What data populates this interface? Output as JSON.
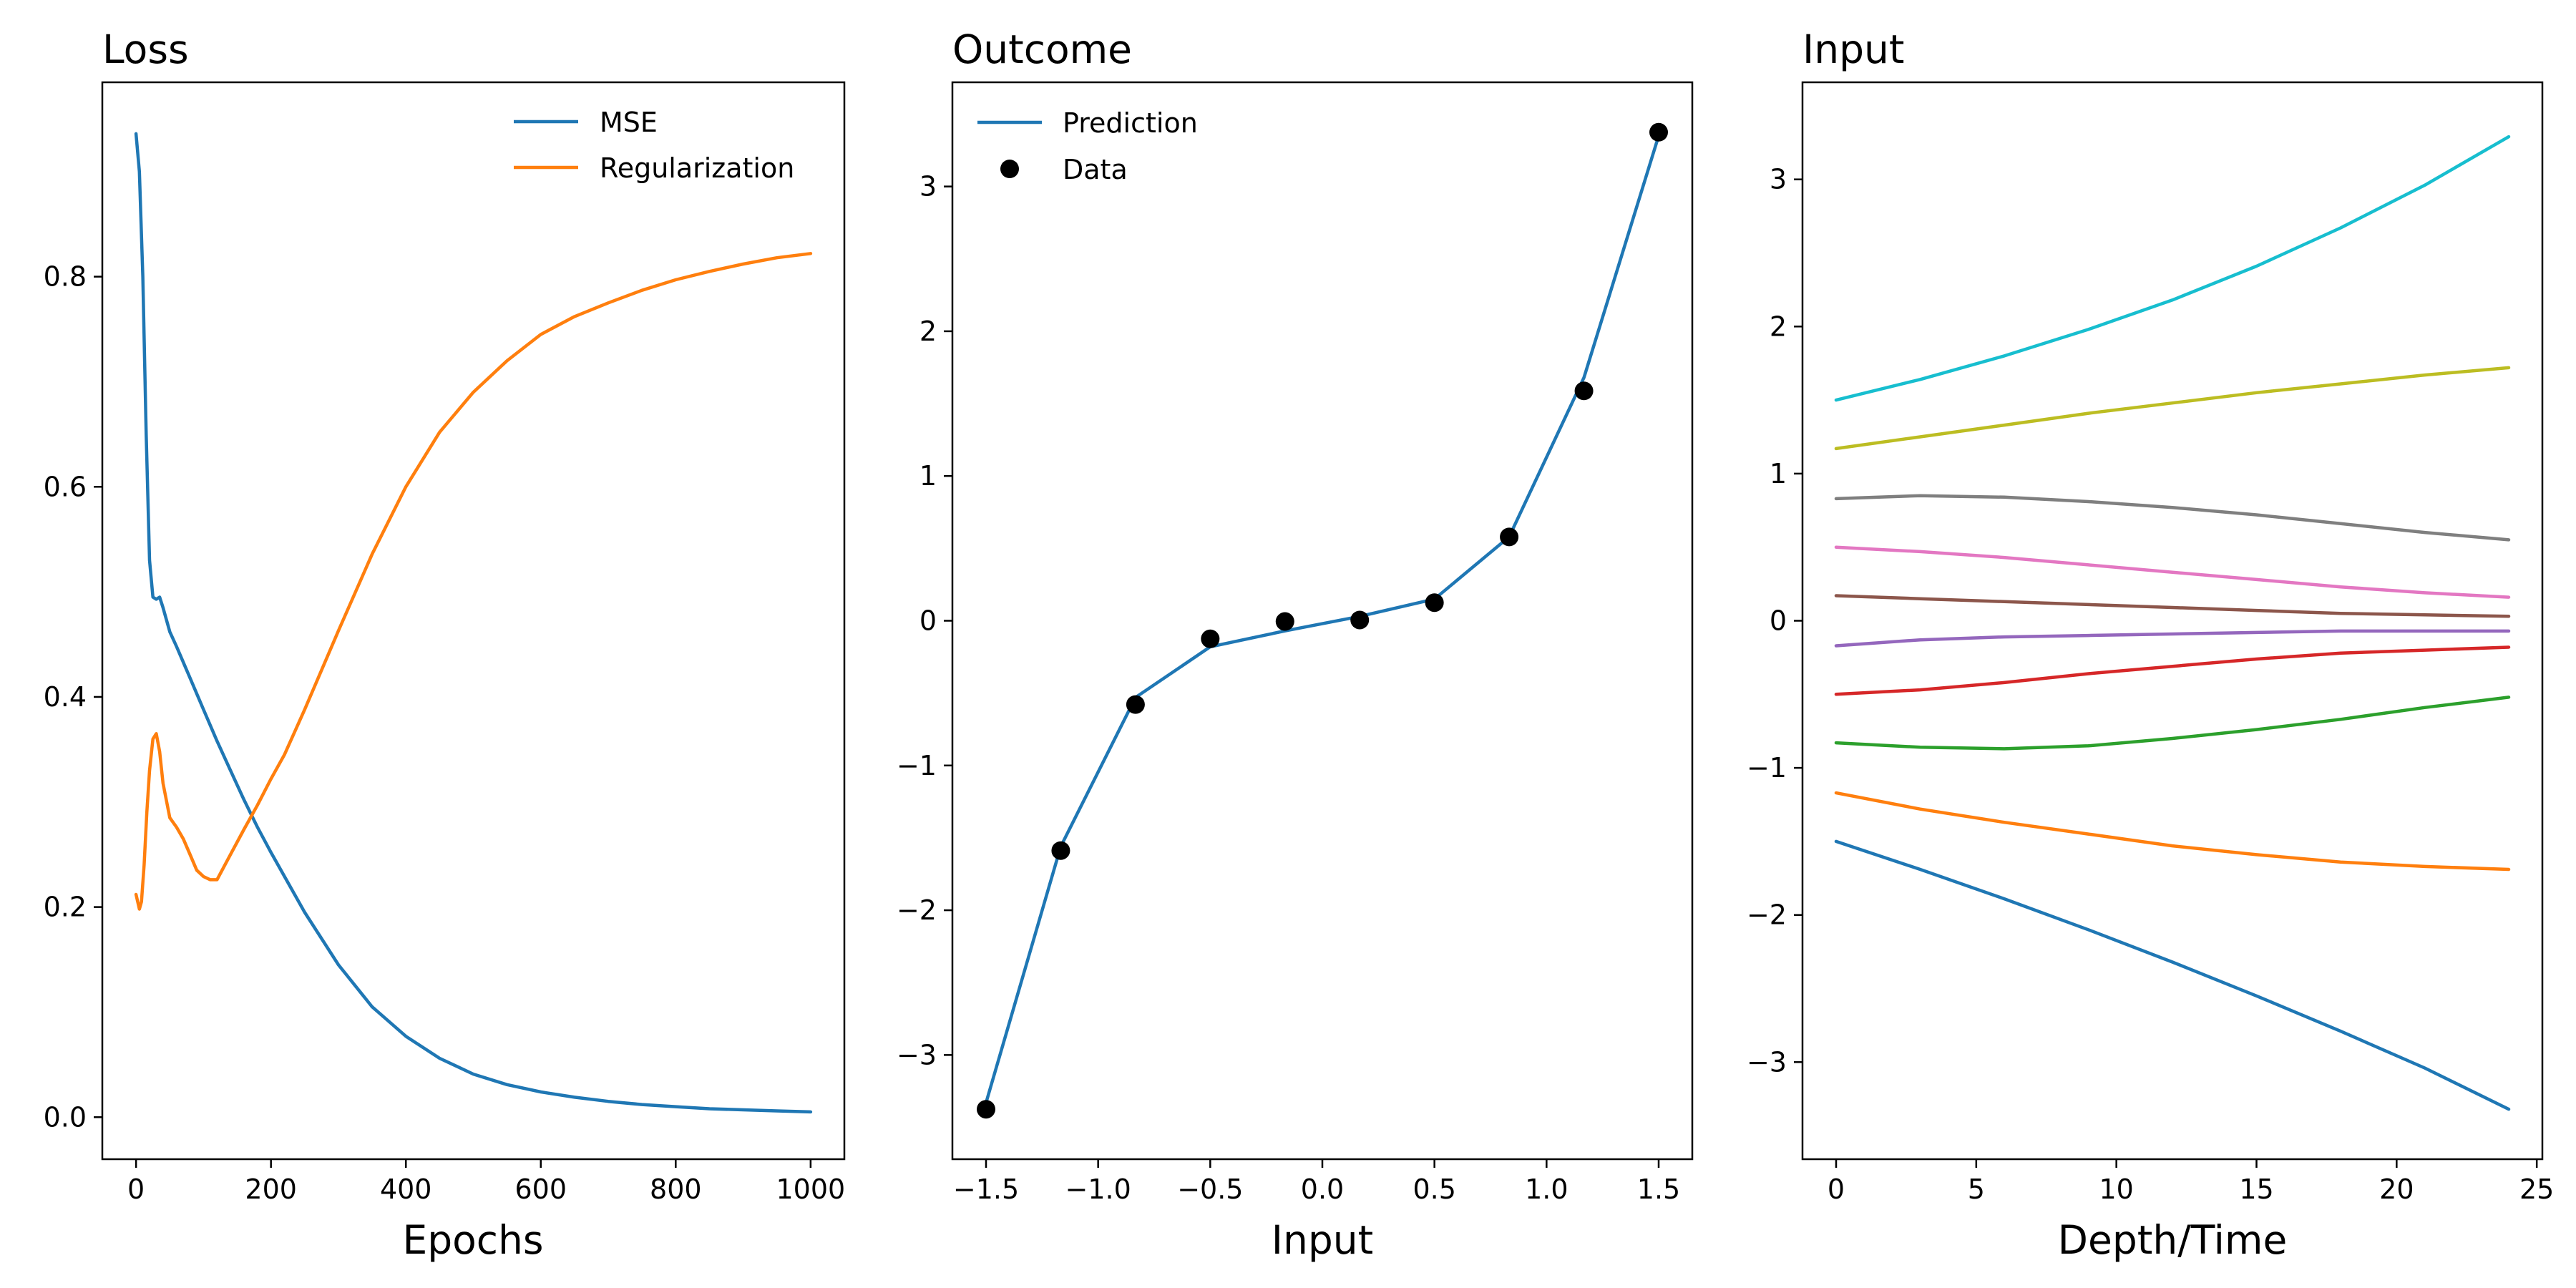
{
  "chart_data": [
    {
      "type": "line",
      "title": "Loss",
      "xlabel": "Epochs",
      "ylabel": "",
      "xlim": [
        -50,
        1050
      ],
      "ylim": [
        -0.04,
        0.985
      ],
      "xticks": [
        0,
        200,
        400,
        600,
        800,
        1000
      ],
      "xtick_labels": [
        "0",
        "200",
        "400",
        "600",
        "800",
        "1000"
      ],
      "yticks": [
        0.0,
        0.2,
        0.4,
        0.6,
        0.8
      ],
      "ytick_labels": [
        "0.0",
        "0.2",
        "0.4",
        "0.6",
        "0.8"
      ],
      "grid": false,
      "legend": "top-right",
      "series": [
        {
          "name": "MSE",
          "color": "#1f77b4",
          "x": [
            0,
            5,
            10,
            15,
            20,
            25,
            30,
            35,
            40,
            50,
            60,
            80,
            100,
            120,
            140,
            160,
            180,
            200,
            250,
            300,
            350,
            400,
            450,
            500,
            550,
            600,
            650,
            700,
            750,
            800,
            850,
            900,
            950,
            1000
          ],
          "y": [
            0.936,
            0.9,
            0.8,
            0.65,
            0.53,
            0.495,
            0.493,
            0.495,
            0.485,
            0.462,
            0.448,
            0.418,
            0.388,
            0.358,
            0.33,
            0.302,
            0.276,
            0.252,
            0.195,
            0.145,
            0.105,
            0.077,
            0.056,
            0.041,
            0.031,
            0.024,
            0.019,
            0.015,
            0.012,
            0.01,
            0.008,
            0.007,
            0.006,
            0.005
          ]
        },
        {
          "name": "Regularization",
          "color": "#ff7f0e",
          "x": [
            0,
            5,
            8,
            12,
            16,
            20,
            25,
            30,
            35,
            40,
            50,
            60,
            70,
            80,
            90,
            100,
            110,
            120,
            130,
            140,
            160,
            180,
            200,
            220,
            250,
            300,
            350,
            400,
            450,
            500,
            550,
            600,
            650,
            700,
            750,
            800,
            850,
            900,
            950,
            1000
          ],
          "y": [
            0.212,
            0.198,
            0.205,
            0.24,
            0.29,
            0.33,
            0.36,
            0.365,
            0.348,
            0.318,
            0.285,
            0.276,
            0.265,
            0.25,
            0.235,
            0.229,
            0.226,
            0.226,
            0.238,
            0.25,
            0.274,
            0.297,
            0.322,
            0.345,
            0.388,
            0.463,
            0.536,
            0.6,
            0.652,
            0.69,
            0.72,
            0.745,
            0.762,
            0.775,
            0.787,
            0.797,
            0.805,
            0.812,
            0.818,
            0.822
          ]
        }
      ]
    },
    {
      "type": "line",
      "title": "Outcome",
      "xlabel": "Input",
      "ylabel": "",
      "xlim": [
        -1.65,
        1.65
      ],
      "ylim": [
        -3.72,
        3.72
      ],
      "xticks": [
        -1.5,
        -1.0,
        -0.5,
        0.0,
        0.5,
        1.0,
        1.5
      ],
      "xtick_labels": [
        "−1.5",
        "−1.0",
        "−0.5",
        "0.0",
        "0.5",
        "1.0",
        "1.5"
      ],
      "yticks": [
        -3,
        -2,
        -1,
        0,
        1,
        2,
        3
      ],
      "ytick_labels": [
        "−3",
        "−2",
        "−1",
        "0",
        "1",
        "2",
        "3"
      ],
      "grid": false,
      "legend": "top-left",
      "series": [
        {
          "name": "Prediction",
          "color": "#1f77b4",
          "x": [
            -1.5,
            -1.1667,
            -0.8333,
            -0.5,
            -0.1667,
            0.1667,
            0.5,
            0.8333,
            1.1667,
            1.5
          ],
          "y": [
            -3.33,
            -1.56,
            -0.53,
            -0.18,
            -0.07,
            0.03,
            0.15,
            0.58,
            1.68,
            3.35
          ]
        },
        {
          "name": "Data",
          "type": "scatter",
          "color": "#000000",
          "x": [
            -1.5,
            -1.1667,
            -0.8333,
            -0.5,
            -0.1667,
            0.1667,
            0.5,
            0.8333,
            1.1667,
            1.5
          ],
          "y": [
            -3.375,
            -1.588,
            -0.579,
            -0.125,
            -0.005,
            0.005,
            0.125,
            0.579,
            1.588,
            3.375
          ]
        }
      ]
    },
    {
      "type": "line",
      "title": "Input",
      "xlabel": "Depth/Time",
      "ylabel": "",
      "xlim": [
        -1.2,
        25.2
      ],
      "ylim": [
        -3.66,
        3.66
      ],
      "xticks": [
        0,
        5,
        10,
        15,
        20,
        25
      ],
      "xtick_labels": [
        "0",
        "5",
        "10",
        "15",
        "20",
        "25"
      ],
      "yticks": [
        -3,
        -2,
        -1,
        0,
        1,
        2,
        3
      ],
      "ytick_labels": [
        "−3",
        "−2",
        "−1",
        "0",
        "1",
        "2",
        "3"
      ],
      "grid": false,
      "legend": "none",
      "x": [
        0,
        3,
        6,
        9,
        12,
        15,
        18,
        21,
        24
      ],
      "series": [
        {
          "color": "#1f77b4",
          "values": [
            -1.5,
            -1.69,
            -1.89,
            -2.1,
            -2.32,
            -2.55,
            -2.79,
            -3.04,
            -3.32
          ]
        },
        {
          "color": "#ff7f0e",
          "values": [
            -1.17,
            -1.28,
            -1.37,
            -1.45,
            -1.53,
            -1.59,
            -1.64,
            -1.67,
            -1.69
          ]
        },
        {
          "color": "#2ca02c",
          "values": [
            -0.83,
            -0.86,
            -0.87,
            -0.85,
            -0.8,
            -0.74,
            -0.67,
            -0.59,
            -0.52
          ]
        },
        {
          "color": "#d62728",
          "values": [
            -0.5,
            -0.47,
            -0.42,
            -0.36,
            -0.31,
            -0.26,
            -0.22,
            -0.2,
            -0.18
          ]
        },
        {
          "color": "#9467bd",
          "values": [
            -0.17,
            -0.13,
            -0.11,
            -0.1,
            -0.09,
            -0.08,
            -0.07,
            -0.07,
            -0.07
          ]
        },
        {
          "color": "#8c564b",
          "values": [
            0.17,
            0.15,
            0.13,
            0.11,
            0.09,
            0.07,
            0.05,
            0.04,
            0.03
          ]
        },
        {
          "color": "#e377c2",
          "values": [
            0.5,
            0.47,
            0.43,
            0.38,
            0.33,
            0.28,
            0.23,
            0.19,
            0.16
          ]
        },
        {
          "color": "#7f7f7f",
          "values": [
            0.83,
            0.85,
            0.84,
            0.81,
            0.77,
            0.72,
            0.66,
            0.6,
            0.55
          ]
        },
        {
          "color": "#bcbd22",
          "values": [
            1.17,
            1.25,
            1.33,
            1.41,
            1.48,
            1.55,
            1.61,
            1.67,
            1.72
          ]
        },
        {
          "color": "#17becf",
          "values": [
            1.5,
            1.64,
            1.8,
            1.98,
            2.18,
            2.41,
            2.67,
            2.96,
            3.29
          ]
        }
      ]
    }
  ]
}
